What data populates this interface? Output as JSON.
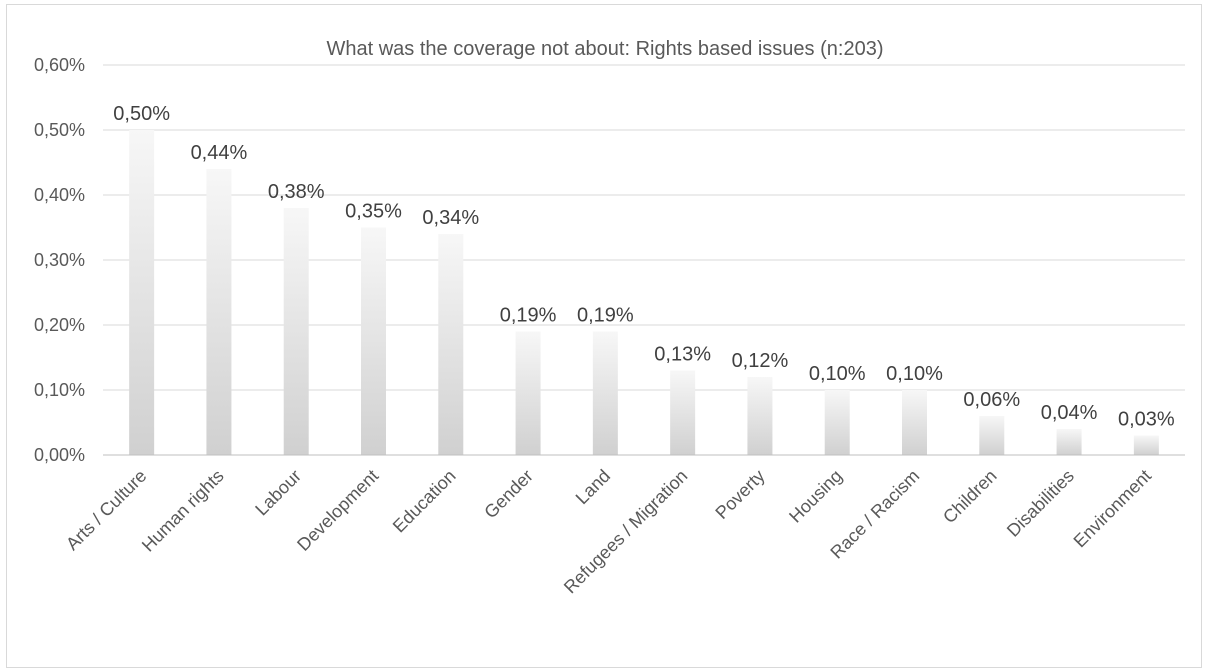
{
  "chart_data": {
    "type": "bar",
    "title": "What was the coverage not about: Rights based issues (n:203)",
    "xlabel": "",
    "ylabel": "",
    "categories": [
      "Arts / Culture",
      "Human rights",
      "Labour",
      "Development",
      "Education",
      "Gender",
      "Land",
      "Refugees / Migration",
      "Poverty",
      "Housing",
      "Race / Racism",
      "Children",
      "Disabilities",
      "Environment"
    ],
    "values": [
      0.5,
      0.44,
      0.38,
      0.35,
      0.34,
      0.19,
      0.19,
      0.13,
      0.12,
      0.1,
      0.1,
      0.06,
      0.04,
      0.03
    ],
    "data_labels": [
      "0,50%",
      "0,44%",
      "0,38%",
      "0,35%",
      "0,34%",
      "0,19%",
      "0,19%",
      "0,13%",
      "0,12%",
      "0,10%",
      "0,10%",
      "0,06%",
      "0,04%",
      "0,03%"
    ],
    "ylim": [
      0,
      0.6
    ],
    "yticks": [
      0,
      0.1,
      0.2,
      0.3,
      0.4,
      0.5,
      0.6
    ],
    "ytick_labels": [
      "0,00%",
      "0,10%",
      "0,20%",
      "0,30%",
      "0,40%",
      "0,50%",
      "0,60%"
    ],
    "grid": true,
    "legend": "none",
    "bar_color_top": "#f7f7f7",
    "bar_color_bottom": "#d0d0d0"
  }
}
